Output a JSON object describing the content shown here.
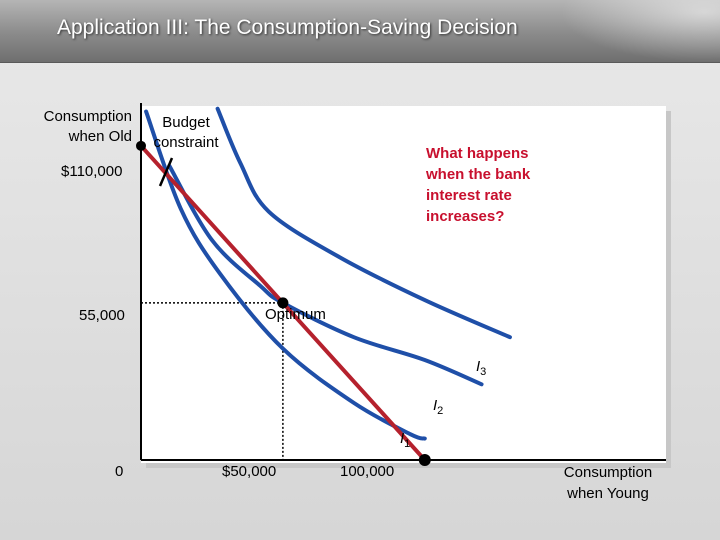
{
  "slide": {
    "title": "Application III: The Consumption-Saving Decision"
  },
  "colors": {
    "budget_line": "#b5212d",
    "indifference_curve": "#1f4fa8",
    "question_text": "#c8102e",
    "axis": "#000000"
  },
  "chart_data": {
    "type": "diagram",
    "title": "Application III: The Consumption-Saving Decision",
    "xlabel_line1": "Consumption",
    "xlabel_line2": "when Young",
    "ylabel_line1": "Consumption",
    "ylabel_line2": "when Old",
    "x_range": [
      0,
      185000
    ],
    "y_range": [
      0,
      125000
    ],
    "x_tick_labels": {
      "zero": "0",
      "x50": "$50,000",
      "x100": "100,000"
    },
    "y_tick_labels": {
      "y110": "$110,000",
      "y55": "55,000"
    },
    "budget_constraint": {
      "label_line1": "Budget",
      "label_line2": "constraint",
      "points": [
        [
          0,
          110000
        ],
        [
          100000,
          0
        ]
      ]
    },
    "optimum": {
      "label": "Optimum",
      "x": 50000,
      "y": 55000
    },
    "indifference_curves": [
      {
        "name": "I",
        "sub": "1",
        "points": [
          [
            1800,
            122000
          ],
          [
            14000,
            88000
          ],
          [
            28000,
            65000
          ],
          [
            50000,
            39000
          ],
          [
            75000,
            20000
          ],
          [
            95000,
            9000
          ],
          [
            100000,
            7500
          ]
        ]
      },
      {
        "name": "I",
        "sub": "2",
        "points": [
          [
            10000,
            103000
          ],
          [
            25000,
            77000
          ],
          [
            42000,
            61000
          ],
          [
            50000,
            55000
          ],
          [
            75000,
            43000
          ],
          [
            100000,
            35000
          ],
          [
            120000,
            26500
          ]
        ]
      },
      {
        "name": "I",
        "sub": "3",
        "points": [
          [
            27000,
            123000
          ],
          [
            35000,
            104000
          ],
          [
            45000,
            87000
          ],
          [
            70000,
            71000
          ],
          [
            100000,
            56000
          ],
          [
            130000,
            43000
          ]
        ]
      }
    ],
    "annotation": {
      "line1": "What happens",
      "line2": "when the bank",
      "line3": "interest rate",
      "line4": "increases?"
    }
  }
}
